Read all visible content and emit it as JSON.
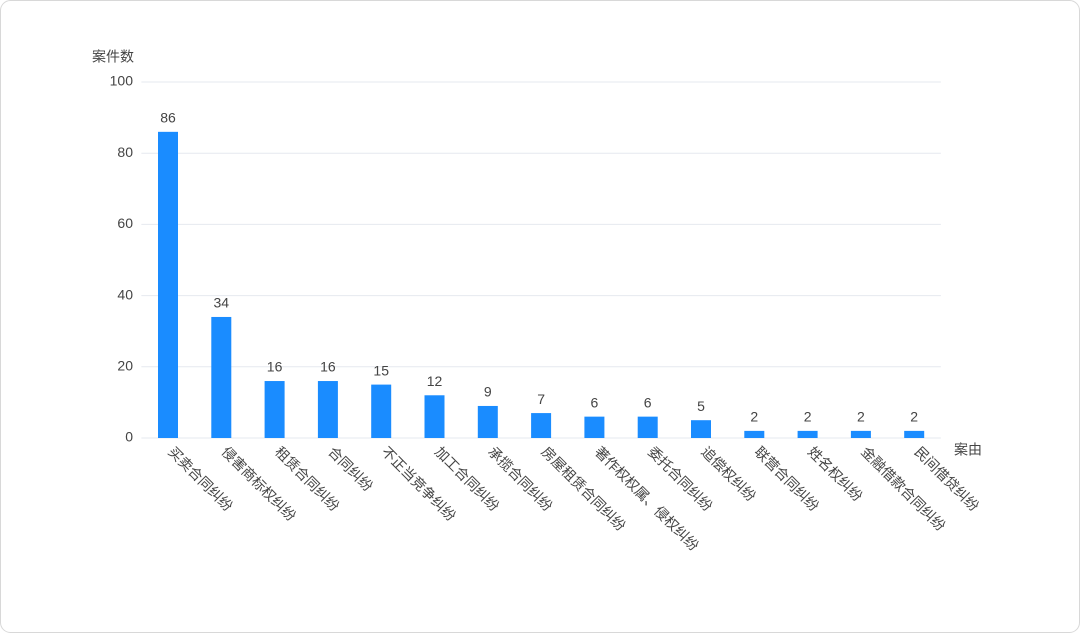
{
  "chart_data": {
    "type": "bar",
    "y_label": "案件数",
    "x_label": "案由",
    "categories": [
      "买卖合同纠纷",
      "侵害商标权纠纷",
      "租赁合同纠纷",
      "合同纠纷",
      "不正当竞争纠纷",
      "加工合同纠纷",
      "承揽合同纠纷",
      "房屋租赁合同纠纷",
      "著作权权属、侵权纠纷",
      "委托合同纠纷",
      "追偿权纠纷",
      "联营合同纠纷",
      "姓名权纠纷",
      "金融借款合同纠纷",
      "民间借贷纠纷"
    ],
    "values": [
      86,
      34,
      16,
      16,
      15,
      12,
      9,
      7,
      6,
      6,
      5,
      2,
      2,
      2,
      2
    ],
    "color": "#1a8cff",
    "ylim": [
      0,
      100
    ],
    "yticks": [
      0,
      20,
      40,
      60,
      80,
      100
    ],
    "grid": true
  }
}
